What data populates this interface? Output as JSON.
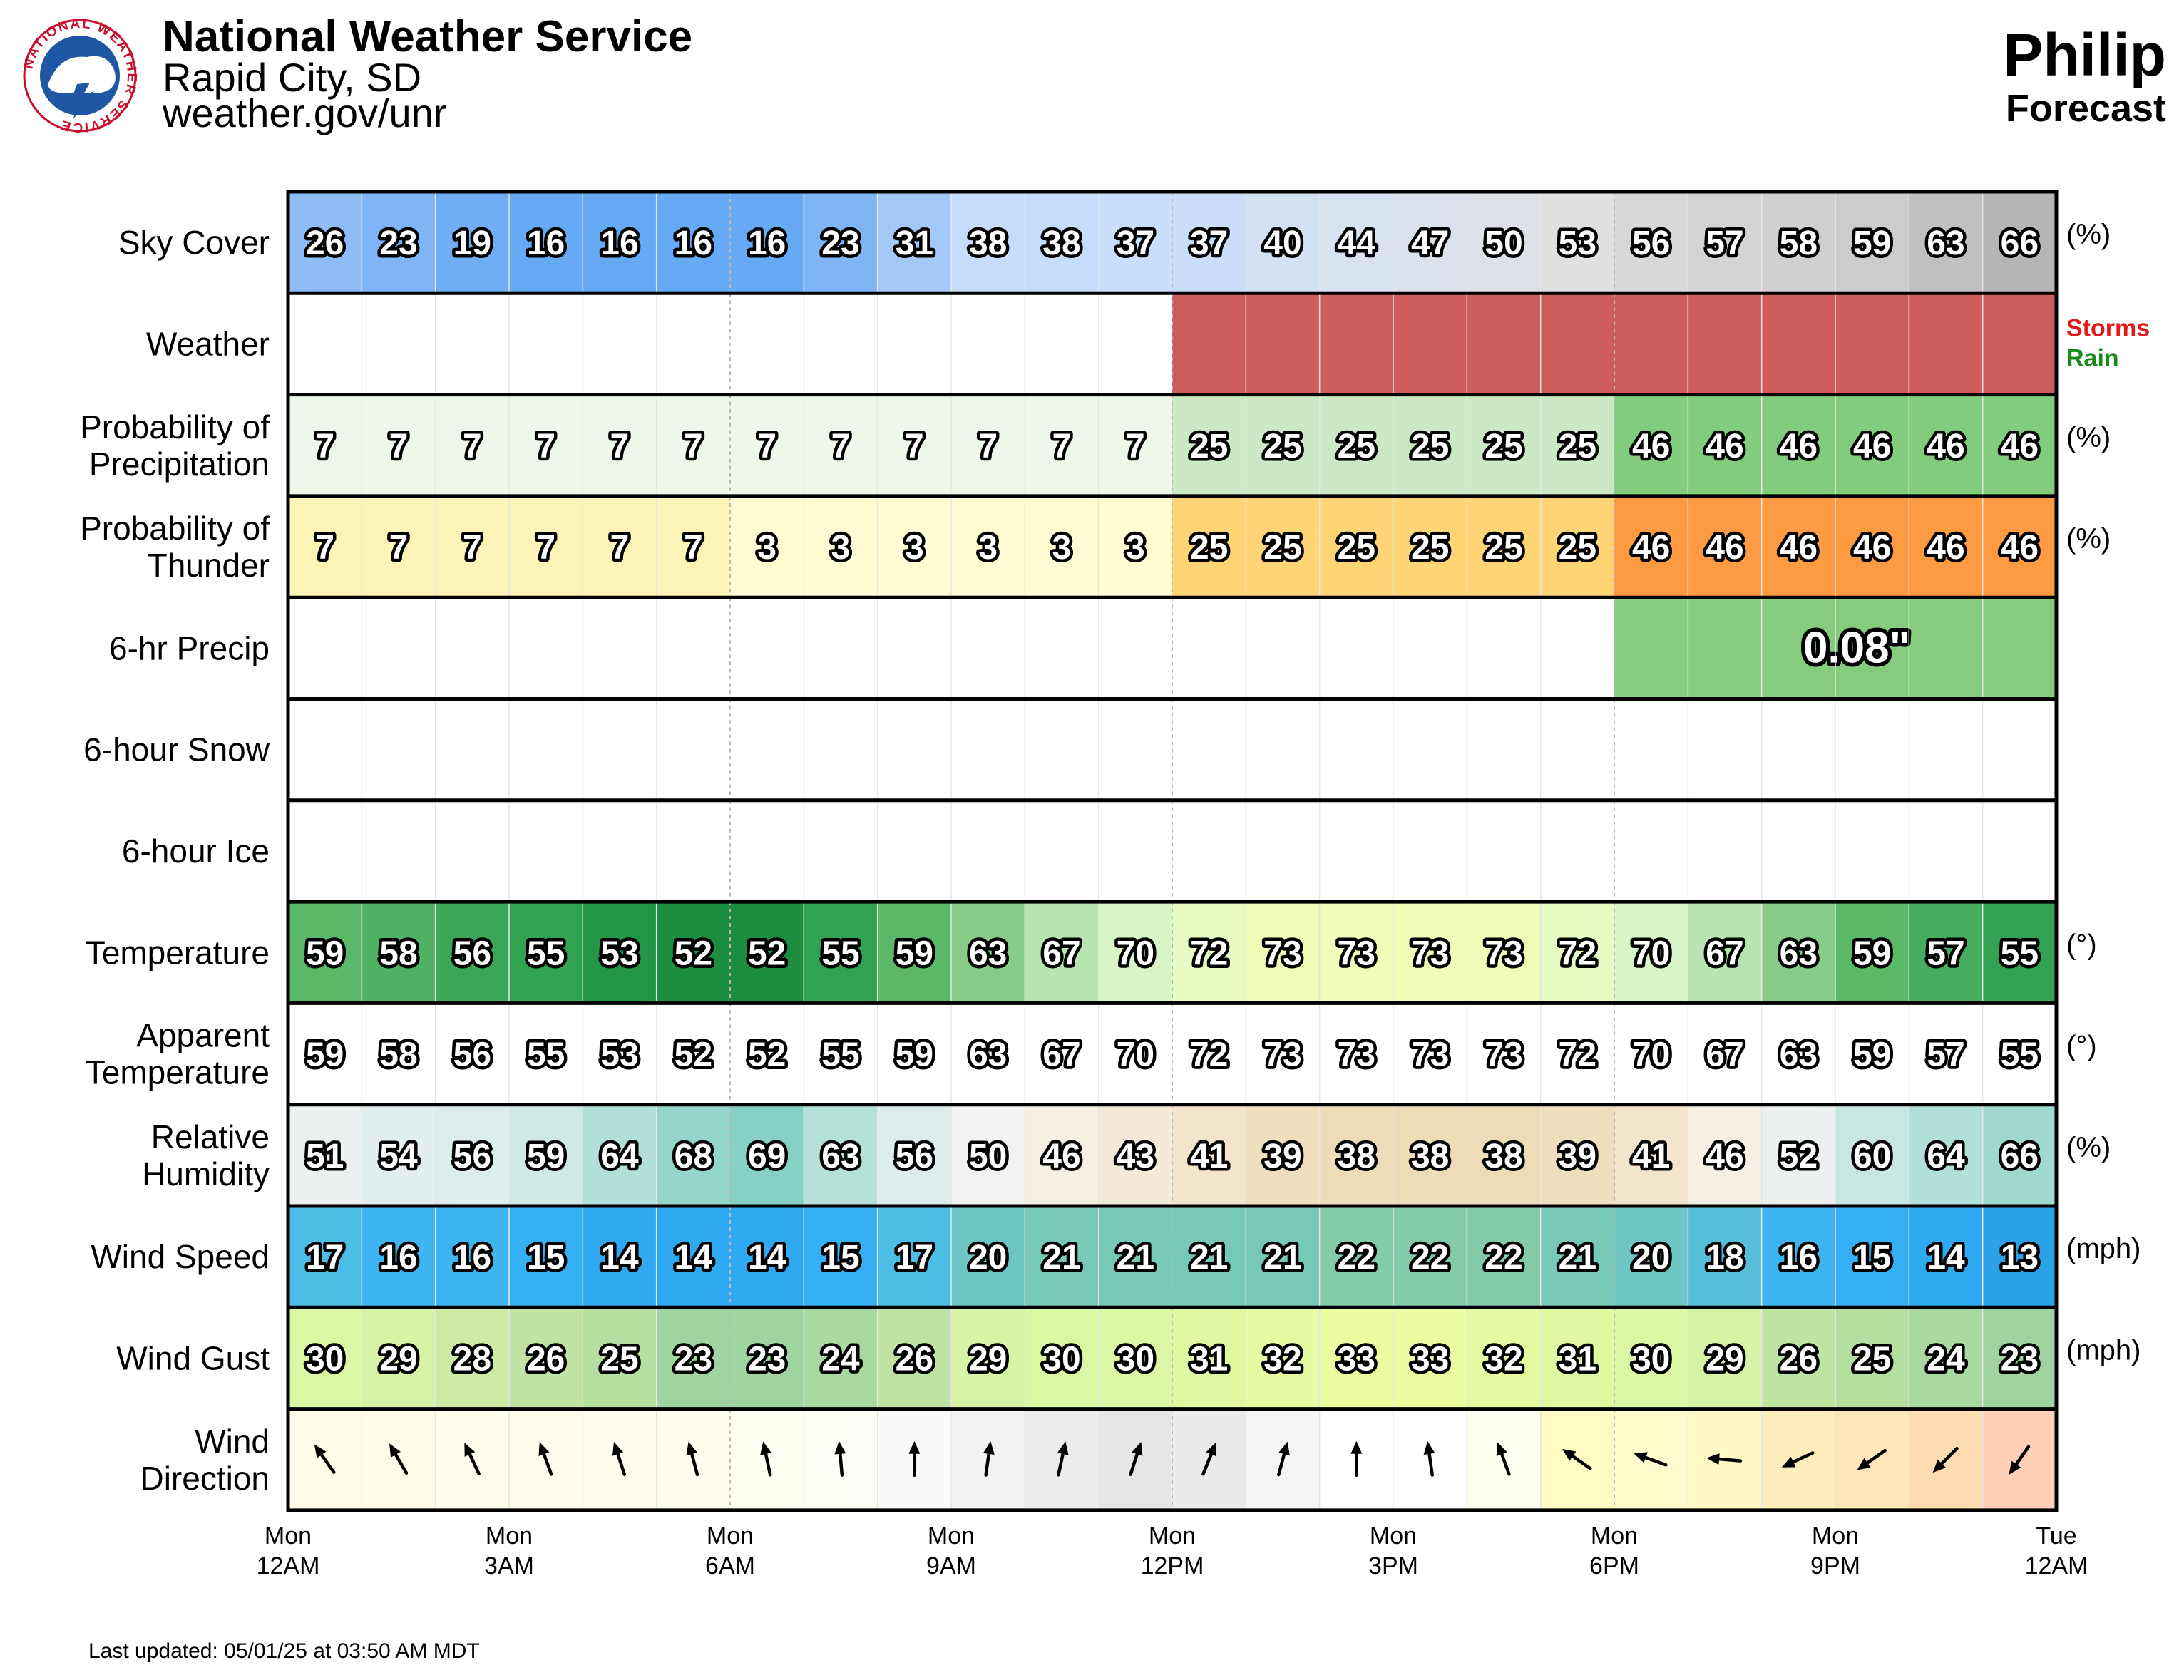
{
  "header": {
    "agency": "National Weather Service",
    "office": "Rapid City, SD",
    "website": "weather.gov/unr",
    "logo_text": "NATIONAL WEATHER SERVICE"
  },
  "location": {
    "name": "Philip",
    "subtitle": "Forecast"
  },
  "footer": {
    "last_updated": "Last updated: 05/01/25 at 03:50 AM MDT"
  },
  "chart_data": {
    "type": "table",
    "time_axis": {
      "hours": 24,
      "interval_hours": 1,
      "ticks": [
        {
          "day": "Mon",
          "time": "12AM"
        },
        {
          "day": "Mon",
          "time": "3AM"
        },
        {
          "day": "Mon",
          "time": "6AM"
        },
        {
          "day": "Mon",
          "time": "9AM"
        },
        {
          "day": "Mon",
          "time": "12PM"
        },
        {
          "day": "Mon",
          "time": "3PM"
        },
        {
          "day": "Mon",
          "time": "6PM"
        },
        {
          "day": "Mon",
          "time": "9PM"
        },
        {
          "day": "Tue",
          "time": "12AM"
        }
      ]
    },
    "rows": [
      {
        "key": "sky_cover",
        "label": [
          "Sky Cover"
        ],
        "unit": "(%)",
        "kind": "values",
        "values": [
          26,
          23,
          19,
          16,
          16,
          16,
          16,
          23,
          31,
          38,
          38,
          37,
          37,
          40,
          44,
          47,
          50,
          53,
          56,
          57,
          58,
          59,
          63,
          66
        ],
        "colors": [
          "#8ebcf5",
          "#7fb5f5",
          "#71adf5",
          "#66a9f4",
          "#66a9f4",
          "#66a9f4",
          "#66a9f4",
          "#7fb5f5",
          "#a4c8f8",
          "#c6dcfb",
          "#c6dcfb",
          "#c9defb",
          "#cadef9",
          "#d3e1f5",
          "#d8e2f0",
          "#dce2ec",
          "#dfe1e8",
          "#e0e0e0",
          "#d8d8d8",
          "#d4d4d4",
          "#d0d0d0",
          "#cccccc",
          "#c0c0c0",
          "#b6b6b6"
        ]
      },
      {
        "key": "weather",
        "label": [
          "Weather"
        ],
        "kind": "weather",
        "values": [
          "",
          "",
          "",
          "",
          "",
          "",
          "",
          "",
          "",
          "",
          "",
          "",
          "Storms",
          "Storms",
          "Storms",
          "Storms",
          "Storms",
          "Storms",
          "Storms",
          "Storms",
          "Storms",
          "Storms",
          "Storms",
          "Storms"
        ],
        "fill": "#cd5c5c",
        "legend": [
          {
            "text": "Storms",
            "color": "#e31a1c"
          },
          {
            "text": "Rain",
            "color": "#1a8a1a"
          }
        ]
      },
      {
        "key": "pop",
        "label": [
          "Probability of",
          "Precipitation"
        ],
        "unit": "(%)",
        "kind": "values",
        "values": [
          7,
          7,
          7,
          7,
          7,
          7,
          7,
          7,
          7,
          7,
          7,
          7,
          25,
          25,
          25,
          25,
          25,
          25,
          46,
          46,
          46,
          46,
          46,
          46
        ],
        "colors": [
          "#eef7ea",
          "#eef7ea",
          "#eef7ea",
          "#eef7ea",
          "#eef7ea",
          "#eef7ea",
          "#eef7ea",
          "#eef7ea",
          "#eef7ea",
          "#eef7ea",
          "#eef7ea",
          "#eef7ea",
          "#cae9c4",
          "#cae9c4",
          "#cae9c4",
          "#cae9c4",
          "#cae9c4",
          "#cae9c4",
          "#82cc7e",
          "#82cc7e",
          "#82cc7e",
          "#82cc7e",
          "#82cc7e",
          "#82cc7e"
        ]
      },
      {
        "key": "thunder",
        "label": [
          "Probability of",
          "Thunder"
        ],
        "unit": "(%)",
        "kind": "values",
        "values": [
          7,
          7,
          7,
          7,
          7,
          7,
          3,
          3,
          3,
          3,
          3,
          3,
          25,
          25,
          25,
          25,
          25,
          25,
          46,
          46,
          46,
          46,
          46,
          46
        ],
        "colors": [
          "#fff4b8",
          "#fff4b8",
          "#fff4b8",
          "#fff4b8",
          "#fff4b8",
          "#fff4b8",
          "#fffbd2",
          "#fffbd2",
          "#fffbd2",
          "#fffbd2",
          "#fffbd2",
          "#fffbd2",
          "#ffd474",
          "#ffd474",
          "#ffd474",
          "#ffd474",
          "#ffd474",
          "#ffd474",
          "#fd9a42",
          "#fd9a42",
          "#fd9a42",
          "#fd9a42",
          "#fd9a42",
          "#fd9a42"
        ]
      },
      {
        "key": "precip_6hr",
        "label": [
          "6-hr Precip"
        ],
        "kind": "blocks",
        "blocks": [
          {
            "start": 18,
            "end": 24,
            "value": "0.08\"",
            "color": "#86cc7e"
          }
        ]
      },
      {
        "key": "snow_6hr",
        "label": [
          "6-hour Snow"
        ],
        "kind": "blocks",
        "blocks": []
      },
      {
        "key": "ice_6hr",
        "label": [
          "6-hour Ice"
        ],
        "kind": "blocks",
        "blocks": []
      },
      {
        "key": "temperature",
        "label": [
          "Temperature"
        ],
        "unit": "(°)",
        "kind": "values",
        "values": [
          59,
          58,
          56,
          55,
          53,
          52,
          52,
          55,
          59,
          63,
          67,
          70,
          72,
          73,
          73,
          73,
          73,
          72,
          70,
          67,
          63,
          59,
          57,
          55
        ],
        "colors": [
          "#5bb868",
          "#4fb262",
          "#3aa758",
          "#30a252",
          "#239646",
          "#1d8d3f",
          "#1d8d3f",
          "#30a252",
          "#5bb868",
          "#86cc86",
          "#b7e4b0",
          "#d8f5c8",
          "#e8fbc4",
          "#f0fcb8",
          "#f0fcb8",
          "#f0fcb8",
          "#f0fcb8",
          "#e8fbc4",
          "#d8f5c8",
          "#b7e4b0",
          "#86cc86",
          "#5bb868",
          "#45ad5e",
          "#30a252"
        ]
      },
      {
        "key": "apparent_temperature",
        "label": [
          "Apparent",
          "Temperature"
        ],
        "unit": "(°)",
        "kind": "values",
        "values": [
          59,
          58,
          56,
          55,
          53,
          52,
          52,
          55,
          59,
          63,
          67,
          70,
          72,
          73,
          73,
          73,
          73,
          72,
          70,
          67,
          63,
          59,
          57,
          55
        ],
        "colors": [
          "#ffffff",
          "#ffffff",
          "#ffffff",
          "#ffffff",
          "#ffffff",
          "#ffffff",
          "#ffffff",
          "#ffffff",
          "#ffffff",
          "#ffffff",
          "#ffffff",
          "#ffffff",
          "#ffffff",
          "#ffffff",
          "#ffffff",
          "#ffffff",
          "#ffffff",
          "#ffffff",
          "#ffffff",
          "#ffffff",
          "#ffffff",
          "#ffffff",
          "#ffffff",
          "#ffffff"
        ]
      },
      {
        "key": "relative_humidity",
        "label": [
          "Relative",
          "Humidity"
        ],
        "unit": "(%)",
        "kind": "values",
        "values": [
          51,
          54,
          56,
          59,
          64,
          68,
          69,
          63,
          56,
          50,
          46,
          43,
          41,
          39,
          38,
          38,
          38,
          39,
          41,
          46,
          52,
          60,
          64,
          66
        ],
        "colors": [
          "#ecf0f0",
          "#e3efee",
          "#dcedeb",
          "#cfe9e5",
          "#b2e0d8",
          "#94d6ca",
          "#86d1c4",
          "#b5e1d9",
          "#dcedeb",
          "#f2f2f2",
          "#f5efe4",
          "#f4ead8",
          "#f3e5cc",
          "#f0dfbf",
          "#eedcb8",
          "#eedcb8",
          "#eedcb8",
          "#f0dfbf",
          "#f3e5cc",
          "#f5efe4",
          "#ecf0f0",
          "#c9e7e2",
          "#b2e0d8",
          "#a0dacf"
        ]
      },
      {
        "key": "wind_speed",
        "label": [
          "Wind Speed"
        ],
        "unit": "(mph)",
        "kind": "values",
        "values": [
          17,
          16,
          16,
          15,
          14,
          14,
          14,
          15,
          17,
          20,
          21,
          21,
          21,
          21,
          22,
          22,
          22,
          21,
          20,
          18,
          16,
          15,
          14,
          13
        ],
        "colors": [
          "#4cbde4",
          "#3eb4f0",
          "#3eb4f0",
          "#35b0f5",
          "#2fa9f2",
          "#2fa9f2",
          "#2fa9f2",
          "#35b0f5",
          "#4cbde4",
          "#6dc6c4",
          "#78c8b6",
          "#78c8b6",
          "#78c8b6",
          "#78c8b6",
          "#84cbaa",
          "#84cbaa",
          "#84cbaa",
          "#78c8b6",
          "#6dc6c4",
          "#56bed8",
          "#3eb4f0",
          "#35b0f5",
          "#2fa9f2",
          "#2aa1e8"
        ]
      },
      {
        "key": "wind_gust",
        "label": [
          "Wind Gust"
        ],
        "unit": "(mph)",
        "kind": "values",
        "values": [
          30,
          29,
          28,
          26,
          25,
          23,
          23,
          24,
          26,
          29,
          30,
          30,
          31,
          32,
          33,
          33,
          32,
          31,
          30,
          29,
          26,
          25,
          24,
          23
        ],
        "colors": [
          "#dbf6a4",
          "#d7f3a5",
          "#cdeba4",
          "#bfe3a2",
          "#b5dea1",
          "#9fd4a0",
          "#9fd4a0",
          "#a9d9a0",
          "#bfe3a2",
          "#d7f3a5",
          "#dbf6a4",
          "#dbf6a4",
          "#e1f8a3",
          "#e6faa2",
          "#ebfca1",
          "#ebfca1",
          "#e6faa2",
          "#e1f8a3",
          "#dbf6a4",
          "#d7f3a5",
          "#bfe3a2",
          "#b5dea1",
          "#a9d9a0",
          "#9fd4a0"
        ]
      },
      {
        "key": "wind_direction",
        "label": [
          "Wind",
          "Direction"
        ],
        "kind": "arrows",
        "values_deg_toward": [
          325,
          330,
          335,
          340,
          342,
          345,
          348,
          355,
          0,
          8,
          12,
          18,
          22,
          15,
          0,
          352,
          340,
          305,
          290,
          275,
          245,
          235,
          225,
          215
        ],
        "colors": [
          "#fffde8",
          "#fffde8",
          "#fffdec",
          "#fffdec",
          "#fffdee",
          "#fffdee",
          "#fffef2",
          "#fffef6",
          "#fafafa",
          "#f2f2f2",
          "#ececec",
          "#e6e6e6",
          "#ebebeb",
          "#f4f4f4",
          "#ffffff",
          "#ffffff",
          "#fffff0",
          "#fffcc4",
          "#fffbcc",
          "#fff7c4",
          "#ffeebc",
          "#ffe6b6",
          "#ffdcb0",
          "#ffcfb8"
        ]
      }
    ]
  }
}
